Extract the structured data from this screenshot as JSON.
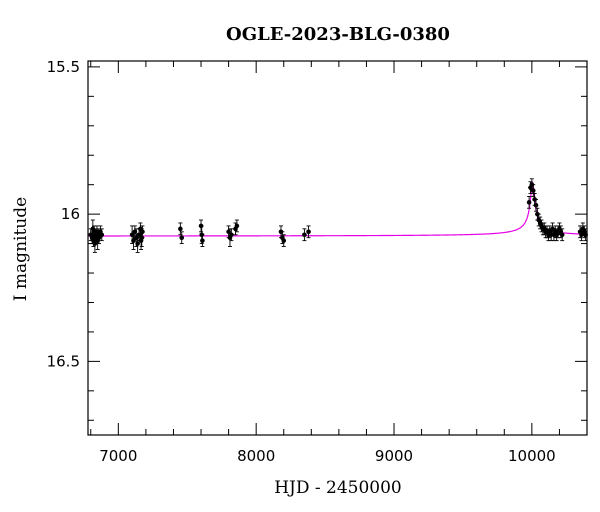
{
  "chart_data": {
    "type": "scatter",
    "title": "OGLE-2023-BLG-0380",
    "xlabel": "HJD - 2450000",
    "ylabel": "I magnitude",
    "xlim": [
      6780,
      10400
    ],
    "ylim": [
      16.75,
      15.48
    ],
    "y_inverted": true,
    "x_ticks": [
      7000,
      8000,
      9000,
      10000
    ],
    "y_ticks": [
      15.5,
      16,
      16.5
    ],
    "y_tick_labels": [
      "15.5",
      "16",
      "16.5"
    ],
    "grid": false,
    "legend": "none",
    "colors": {
      "data": "#000000",
      "model": "#e600e6"
    },
    "baseline_mag": 16.075,
    "peak": {
      "x": 10005,
      "mag": 15.89
    },
    "series": [
      {
        "kind": "points_with_errorbars",
        "x": [
          6800,
          6810,
          6815,
          6820,
          6825,
          6830,
          6835,
          6840,
          6845,
          6850,
          6855,
          6860,
          6870,
          6880,
          7100,
          7110,
          7120,
          7130,
          7140,
          7150,
          7160,
          7165,
          7170,
          7175,
          7450,
          7460,
          7600,
          7605,
          7610,
          7800,
          7810,
          7820,
          7850,
          7860,
          8180,
          8190,
          8200,
          8350,
          8380,
          9980,
          9990,
          10000,
          10010,
          10020,
          10030,
          10040,
          10050,
          10060,
          10070,
          10080,
          10090,
          10100,
          10110,
          10120,
          10130,
          10140,
          10150,
          10160,
          10170,
          10180,
          10190,
          10200,
          10210,
          10220,
          10350,
          10360,
          10370,
          10380,
          10390
        ],
        "y": [
          16.07,
          16.08,
          16.05,
          16.09,
          16.06,
          16.1,
          16.07,
          16.08,
          16.06,
          16.09,
          16.07,
          16.08,
          16.06,
          16.07,
          16.07,
          16.09,
          16.06,
          16.08,
          16.1,
          16.07,
          16.05,
          16.09,
          16.08,
          16.06,
          16.05,
          16.08,
          16.04,
          16.07,
          16.09,
          16.06,
          16.08,
          16.07,
          16.05,
          16.04,
          16.06,
          16.08,
          16.09,
          16.07,
          16.06,
          15.96,
          15.91,
          15.9,
          15.92,
          15.95,
          15.97,
          16.0,
          16.02,
          16.03,
          16.04,
          16.05,
          16.05,
          16.06,
          16.06,
          16.07,
          16.06,
          16.07,
          16.05,
          16.07,
          16.06,
          16.07,
          16.06,
          16.05,
          16.06,
          16.07,
          16.06,
          16.07,
          16.05,
          16.06,
          16.07
        ],
        "err": [
          0.02,
          0.02,
          0.03,
          0.02,
          0.02,
          0.03,
          0.02,
          0.02,
          0.02,
          0.03,
          0.02,
          0.02,
          0.02,
          0.02,
          0.03,
          0.03,
          0.02,
          0.03,
          0.03,
          0.02,
          0.02,
          0.03,
          0.03,
          0.02,
          0.02,
          0.02,
          0.02,
          0.03,
          0.02,
          0.02,
          0.03,
          0.02,
          0.02,
          0.02,
          0.02,
          0.02,
          0.02,
          0.02,
          0.02,
          0.02,
          0.02,
          0.02,
          0.02,
          0.02,
          0.02,
          0.02,
          0.02,
          0.02,
          0.02,
          0.02,
          0.02,
          0.02,
          0.02,
          0.02,
          0.02,
          0.02,
          0.02,
          0.02,
          0.02,
          0.02,
          0.02,
          0.02,
          0.02,
          0.02,
          0.02,
          0.02,
          0.02,
          0.02,
          0.02
        ]
      }
    ]
  }
}
